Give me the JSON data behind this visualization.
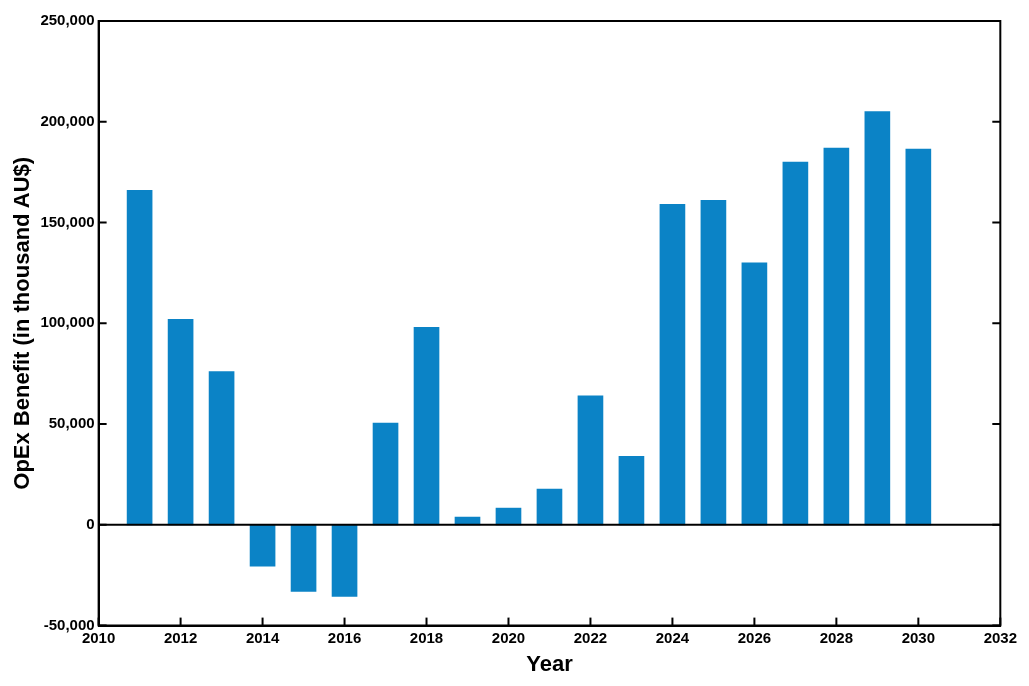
{
  "chart_data": {
    "type": "bar",
    "xlabel": "Year",
    "ylabel": "OpEx Benefit (in thousand AU$)",
    "x": [
      2011,
      2012,
      2013,
      2014,
      2015,
      2016,
      2017,
      2018,
      2019,
      2020,
      2021,
      2022,
      2023,
      2024,
      2025,
      2026,
      2027,
      2028,
      2029,
      2030
    ],
    "values": [
      166000,
      102000,
      76000,
      -20500,
      -33000,
      -35500,
      50500,
      98000,
      3800,
      8300,
      17700,
      64000,
      34000,
      159000,
      161000,
      130000,
      180000,
      187000,
      205000,
      186500
    ],
    "color": "#0b83c6",
    "xlim": [
      2010,
      2032
    ],
    "xticks": [
      2010,
      2012,
      2014,
      2016,
      2018,
      2020,
      2022,
      2024,
      2026,
      2028,
      2030,
      2032
    ],
    "ylim": [
      -50000,
      250000
    ],
    "yticks": [
      {
        "value": -50000,
        "label": "-50,000"
      },
      {
        "value": 0,
        "label": "0"
      },
      {
        "value": 50000,
        "label": "50,000"
      },
      {
        "value": 100000,
        "label": "100,000"
      },
      {
        "value": 150000,
        "label": "150,000"
      },
      {
        "value": 200000,
        "label": "200,000"
      },
      {
        "value": 250000,
        "label": "250,000"
      }
    ],
    "ref_lines": [
      {
        "axis": "y",
        "value": 0,
        "color": "#000000"
      }
    ]
  }
}
